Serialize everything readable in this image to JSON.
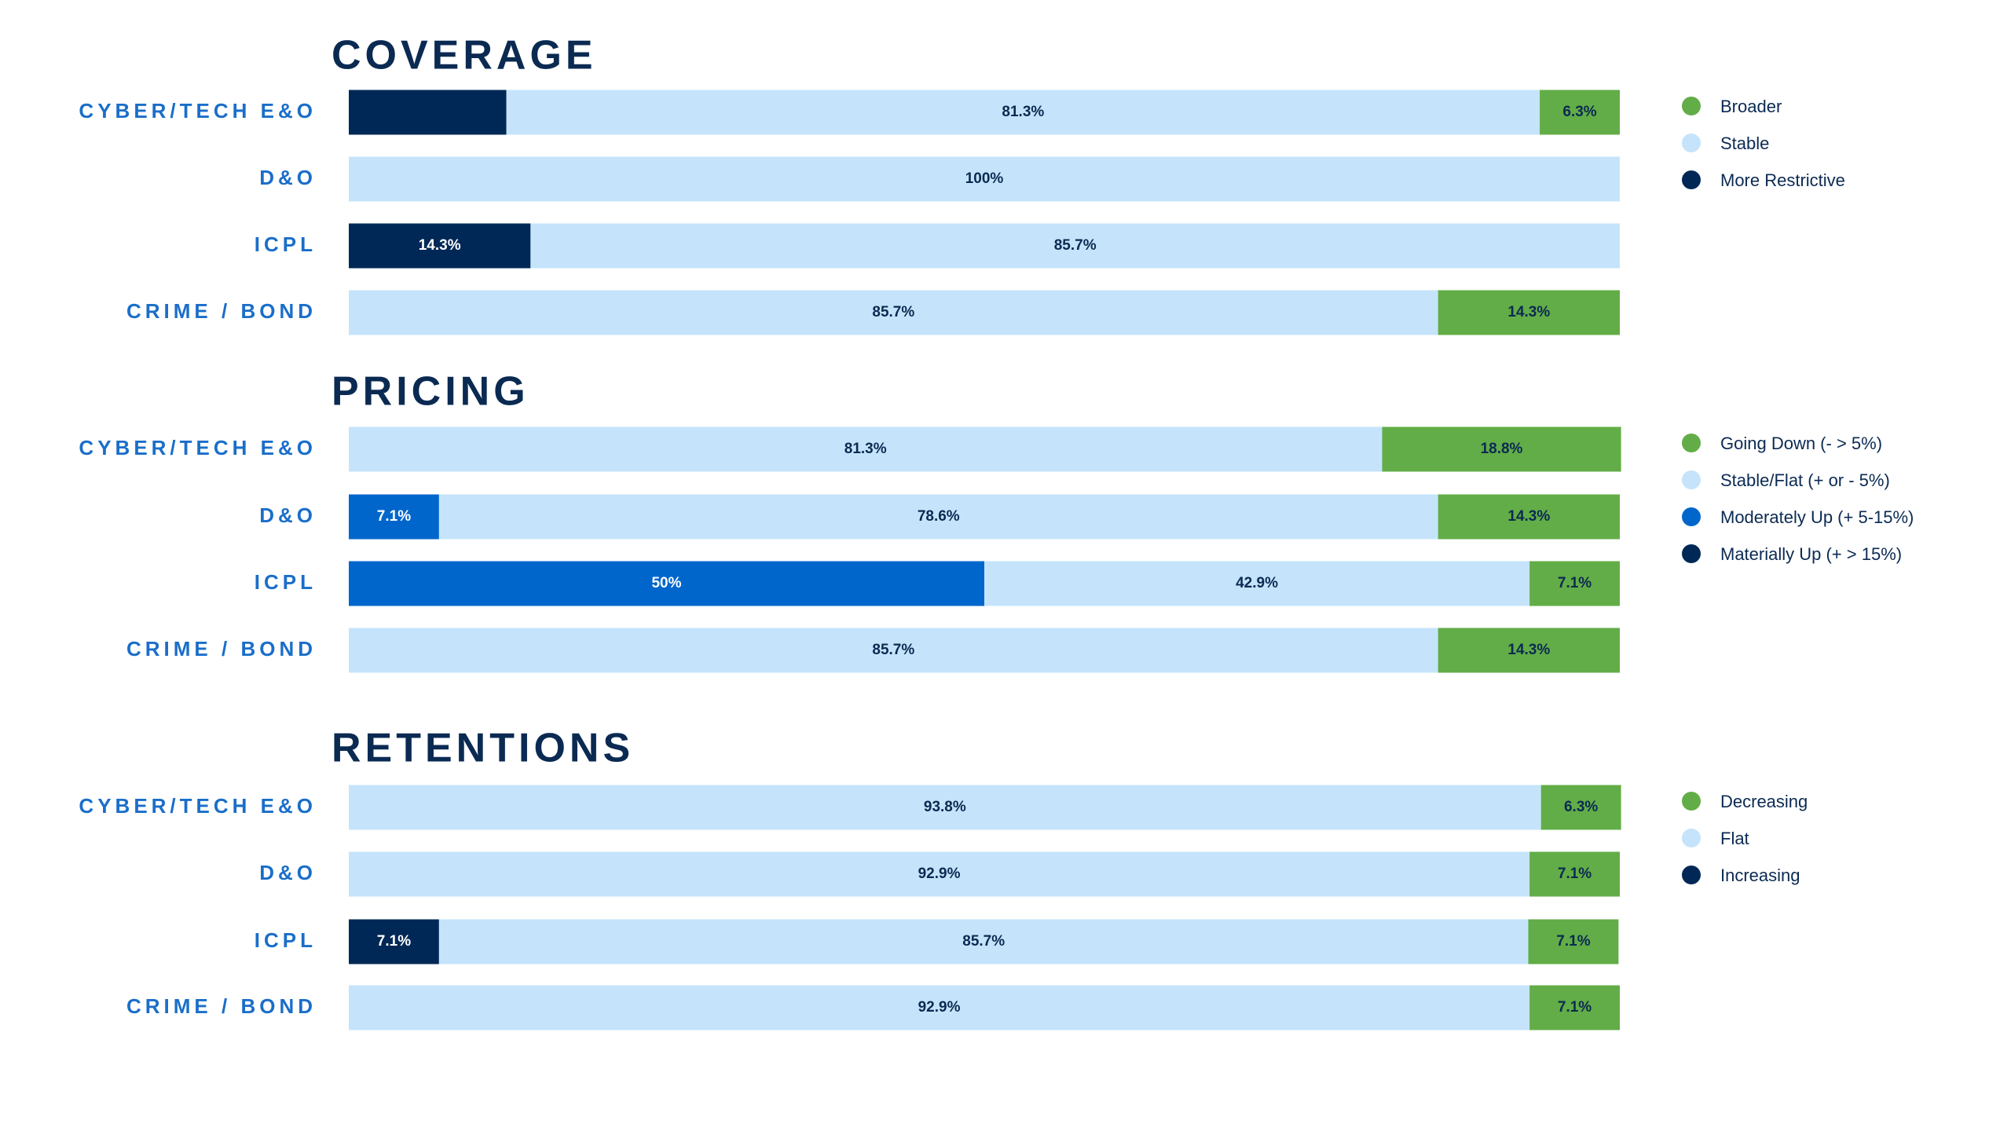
{
  "chart_data": [
    {
      "type": "bar",
      "stacked": true,
      "orientation": "horizontal",
      "title": "COVERAGE",
      "categories": [
        "CYBER/TECH E&O",
        "D&O",
        "ICPL",
        "CRIME / BOND"
      ],
      "xlim": [
        0,
        100
      ],
      "series": [
        {
          "name": "Broader",
          "color": "#62ad47",
          "values": [
            6.3,
            null,
            null,
            14.3
          ],
          "value_labels": [
            "6.3%",
            null,
            null,
            "14.3%"
          ]
        },
        {
          "name": "Stable",
          "color": "#c5e4fb",
          "values": [
            81.3,
            100,
            85.7,
            85.7
          ],
          "value_labels": [
            "81.3%",
            "100%",
            "85.7%",
            "85.7%"
          ]
        },
        {
          "name": "More Restrictive",
          "color": "#002856",
          "values": [
            12.4,
            null,
            14.3,
            null
          ],
          "value_labels": [
            null,
            null,
            "14.3%",
            null
          ]
        }
      ]
    },
    {
      "type": "bar",
      "stacked": true,
      "orientation": "horizontal",
      "title": "PRICING",
      "categories": [
        "CYBER/TECH E&O",
        "D&O",
        "ICPL",
        "CRIME / BOND"
      ],
      "xlim": [
        0,
        100
      ],
      "series": [
        {
          "name": "Going Down (- > 5%)",
          "color": "#62ad47",
          "values": [
            18.8,
            14.3,
            7.1,
            14.3
          ],
          "value_labels": [
            "18.8%",
            "14.3%",
            "7.1%",
            "14.3%"
          ]
        },
        {
          "name": "Stable/Flat (+ or - 5%)",
          "color": "#c5e4fb",
          "values": [
            81.3,
            78.6,
            42.9,
            85.7
          ],
          "value_labels": [
            "81.3%",
            "78.6%",
            "42.9%",
            "85.7%"
          ]
        },
        {
          "name": "Moderately Up (+ 5-15%)",
          "color": "#0066cc",
          "values": [
            null,
            7.1,
            50,
            null
          ],
          "value_labels": [
            null,
            "7.1%",
            "50%",
            null
          ]
        },
        {
          "name": "Materially Up (+ > 15%)",
          "color": "#002856",
          "values": [
            null,
            null,
            null,
            null
          ],
          "value_labels": [
            null,
            null,
            null,
            null
          ]
        }
      ]
    },
    {
      "type": "bar",
      "stacked": true,
      "orientation": "horizontal",
      "title": "RETENTIONS",
      "categories": [
        "CYBER/TECH E&O",
        "D&O",
        "ICPL",
        "CRIME / BOND"
      ],
      "xlim": [
        0,
        100
      ],
      "series": [
        {
          "name": "Decreasing",
          "color": "#62ad47",
          "values": [
            6.3,
            7.1,
            7.1,
            7.1
          ],
          "value_labels": [
            "6.3%",
            "7.1%",
            "7.1%",
            "7.1%"
          ]
        },
        {
          "name": "Flat",
          "color": "#c5e4fb",
          "values": [
            93.8,
            92.9,
            85.7,
            92.9
          ],
          "value_labels": [
            "93.8%",
            "92.9%",
            "85.7%",
            "92.9%"
          ]
        },
        {
          "name": "Increasing",
          "color": "#002856",
          "values": [
            null,
            null,
            7.1,
            null
          ],
          "value_labels": [
            null,
            null,
            "7.1%",
            null
          ]
        }
      ]
    }
  ]
}
